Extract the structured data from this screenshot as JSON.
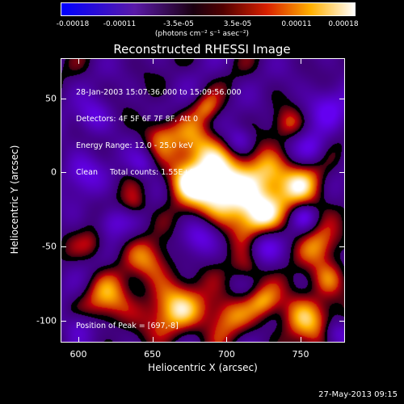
{
  "colorbar": {
    "ticks": [
      "-0.00018",
      "-0.00011",
      "-3.5e-05",
      "3.5e-05",
      "0.00011",
      "0.00018"
    ],
    "unit": "(photons cm⁻² s⁻¹ asec⁻²)"
  },
  "chart_data": {
    "type": "heatmap",
    "title": "Reconstructed RHESSI Image",
    "xlabel": "Heliocentric X (arcsec)",
    "ylabel": "Heliocentric Y (arcsec)",
    "x_ticks": [
      "600",
      "650",
      "700",
      "750"
    ],
    "y_ticks": [
      "50",
      "0",
      "-50",
      "-100"
    ],
    "xlim": [
      588,
      780
    ],
    "ylim": [
      -115,
      77
    ],
    "color_range": [
      -0.00018,
      0.00018
    ],
    "peak": [
      697,
      -8
    ],
    "info_lines": [
      "28-Jan-2003 15:07:36.000 to 15:09:56.000",
      "Detectors: 4F 5F 6F 7F 8F, Att 0",
      "Energy Range: 12.0 - 25.0 keV",
      "Clean     Total counts: 1.55E+03"
    ],
    "peak_label": "Position of Peak = [697,-8]"
  },
  "footer": {
    "date": "27-May-2013 09:15"
  }
}
